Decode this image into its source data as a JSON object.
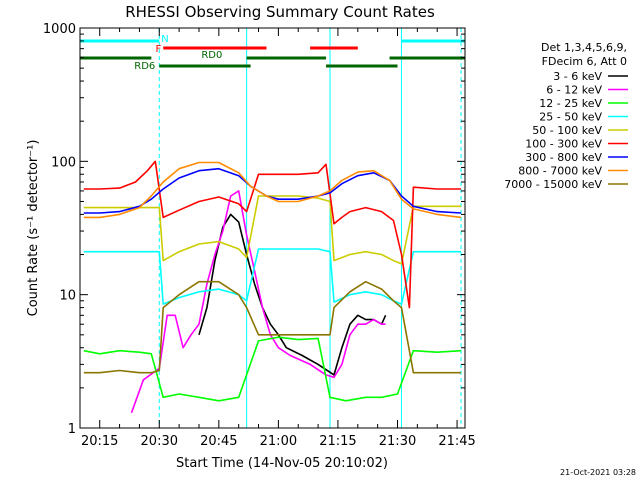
{
  "chart_data": {
    "type": "line",
    "title": "RHESSI Observing Summary Count Rates",
    "xlabel": "Start Time (14-Nov-05 20:10:02)",
    "ylabel": "Count Rate (s⁻¹ detector⁻¹)",
    "y_scale": "log",
    "ylim": [
      1,
      1000
    ],
    "xlim": [
      "20:10:02",
      "21:47"
    ],
    "x_ticks": [
      "20:15",
      "20:30",
      "20:45",
      "21:00",
      "21:15",
      "21:30",
      "21:45"
    ],
    "y_ticks": [
      "1",
      "10",
      "100",
      "1000"
    ],
    "grid": false,
    "legend_placement": "right",
    "info_lines": [
      "Det 1,3,4,5,6,9,",
      "FDecim 6, Att 0"
    ],
    "footer_date": "21-Oct-2021 03:28",
    "series": [
      {
        "name": "3 - 6 keV",
        "color": "#000000",
        "x": [
          "20:10",
          "20:25",
          "20:28",
          "20:30",
          "20:32",
          "20:36",
          "20:38",
          "20:40",
          "20:42",
          "20:44",
          "20:46",
          "20:48",
          "20:50",
          "20:52",
          "20:54",
          "20:56",
          "20:58",
          "21:00",
          "21:02",
          "21:06",
          "21:10",
          "21:14",
          "21:16",
          "21:18",
          "21:20",
          "21:22",
          "21:24",
          "21:26",
          "21:27"
        ],
        "y": [
          null,
          null,
          null,
          null,
          null,
          null,
          null,
          5,
          8,
          18,
          32,
          40,
          35,
          20,
          12,
          8,
          6,
          5,
          4,
          3.5,
          3,
          2.5,
          4,
          6,
          7,
          6.5,
          6.5,
          6,
          7
        ]
      },
      {
        "name": "6 - 12 keV",
        "color": "#ff00ff",
        "x": [
          "20:10",
          "20:23",
          "20:26",
          "20:30",
          "20:32",
          "20:34",
          "20:36",
          "20:38",
          "20:40",
          "20:42",
          "20:44",
          "20:46",
          "20:48",
          "20:50",
          "20:52",
          "20:54",
          "20:56",
          "20:58",
          "21:00",
          "21:03",
          "21:08",
          "21:12",
          "21:14",
          "21:16",
          "21:18",
          "21:20",
          "21:22",
          "21:24",
          "21:26",
          "21:27",
          "21:28"
        ],
        "y": [
          null,
          1.3,
          2.3,
          2.8,
          7,
          7,
          4,
          5,
          6,
          12,
          20,
          30,
          55,
          60,
          28,
          15,
          8,
          5,
          4,
          3.5,
          3,
          2.5,
          2.4,
          3,
          5,
          6,
          6,
          6.5,
          6,
          6,
          null
        ]
      },
      {
        "name": "12 - 25 keV",
        "color": "#00ff00",
        "x": [
          "20:11",
          "20:15",
          "20:20",
          "20:25",
          "20:28",
          "20:31",
          "20:35",
          "20:40",
          "20:45",
          "20:50",
          "20:55",
          "21:00",
          "21:05",
          "21:10",
          "21:13",
          "21:17",
          "21:22",
          "21:26",
          "21:30",
          "21:34",
          "21:40",
          "21:46"
        ],
        "y": [
          3.8,
          3.6,
          3.8,
          3.7,
          3.6,
          1.7,
          1.8,
          1.7,
          1.6,
          1.7,
          4.5,
          4.8,
          4.6,
          4.7,
          1.7,
          1.6,
          1.7,
          1.7,
          1.8,
          3.8,
          3.7,
          3.8
        ]
      },
      {
        "name": "25 - 50 keV",
        "color": "#00ffff",
        "x": [
          "20:11",
          "20:15",
          "20:20",
          "20:25",
          "20:28",
          "20:30",
          "20:31",
          "20:35",
          "20:40",
          "20:45",
          "20:50",
          "20:52",
          "20:55",
          "21:00",
          "21:05",
          "21:10",
          "21:13",
          "21:14",
          "21:18",
          "21:22",
          "21:26",
          "21:29",
          "21:31",
          "21:34",
          "21:40",
          "21:46"
        ],
        "y": [
          21,
          21,
          21,
          21,
          21,
          21,
          8.5,
          9.5,
          10.5,
          11,
          10,
          9,
          22,
          22,
          22,
          22,
          21,
          8.8,
          10,
          10.5,
          10,
          9,
          8.5,
          21,
          21,
          21
        ]
      },
      {
        "name": "50 - 100 keV",
        "color": "#cccc00",
        "x": [
          "20:11",
          "20:15",
          "20:20",
          "20:25",
          "20:28",
          "20:30",
          "20:31",
          "20:35",
          "20:40",
          "20:45",
          "20:50",
          "20:52",
          "20:55",
          "21:00",
          "21:05",
          "21:10",
          "21:13",
          "21:14",
          "21:18",
          "21:22",
          "21:26",
          "21:29",
          "21:31",
          "21:34",
          "21:40",
          "21:46"
        ],
        "y": [
          45,
          45,
          45,
          45,
          45,
          45,
          18,
          21,
          24,
          25,
          22,
          19,
          55,
          55,
          55,
          53,
          50,
          18,
          20,
          21,
          20,
          18,
          17,
          46,
          46,
          46
        ]
      },
      {
        "name": "100 - 300 keV",
        "color": "#ff0000",
        "x": [
          "20:11",
          "20:15",
          "20:20",
          "20:24",
          "20:27",
          "20:29",
          "20:31",
          "20:35",
          "20:40",
          "20:45",
          "20:50",
          "20:52",
          "20:55",
          "21:00",
          "21:05",
          "21:10",
          "21:12",
          "21:14",
          "21:16",
          "21:18",
          "21:22",
          "21:26",
          "21:29",
          "21:31",
          "21:33",
          "21:34",
          "21:40",
          "21:46"
        ],
        "y": [
          62,
          62,
          63,
          70,
          85,
          100,
          38,
          43,
          50,
          54,
          48,
          42,
          80,
          80,
          80,
          82,
          95,
          34,
          38,
          42,
          45,
          42,
          36,
          20,
          8,
          64,
          62,
          62
        ]
      },
      {
        "name": "300 - 800 keV",
        "color": "#0000ff",
        "x": [
          "20:11",
          "20:15",
          "20:20",
          "20:25",
          "20:28",
          "20:31",
          "20:35",
          "20:40",
          "20:45",
          "20:50",
          "20:53",
          "20:57",
          "21:00",
          "21:05",
          "21:10",
          "21:13",
          "21:16",
          "21:20",
          "21:24",
          "21:28",
          "21:31",
          "21:34",
          "21:40",
          "21:46"
        ],
        "y": [
          41,
          41,
          42,
          46,
          52,
          62,
          75,
          85,
          88,
          78,
          65,
          55,
          52,
          52,
          55,
          58,
          68,
          78,
          82,
          72,
          55,
          46,
          42,
          41
        ]
      },
      {
        "name": "800 - 7000 keV",
        "color": "#ff8c00",
        "x": [
          "20:11",
          "20:15",
          "20:20",
          "20:25",
          "20:28",
          "20:31",
          "20:35",
          "20:40",
          "20:45",
          "20:50",
          "20:53",
          "20:57",
          "21:00",
          "21:05",
          "21:10",
          "21:13",
          "21:16",
          "21:20",
          "21:24",
          "21:28",
          "21:31",
          "21:34",
          "21:40",
          "21:46"
        ],
        "y": [
          38,
          38,
          40,
          45,
          55,
          70,
          88,
          98,
          98,
          82,
          65,
          55,
          50,
          50,
          55,
          60,
          72,
          83,
          85,
          72,
          52,
          44,
          40,
          38
        ]
      },
      {
        "name": "7000 - 15000 keV",
        "color": "#8b7500",
        "x": [
          "20:11",
          "20:15",
          "20:20",
          "20:25",
          "20:28",
          "20:30",
          "20:31",
          "20:35",
          "20:40",
          "20:45",
          "20:50",
          "20:52",
          "20:55",
          "21:00",
          "21:05",
          "21:10",
          "21:13",
          "21:14",
          "21:18",
          "21:22",
          "21:26",
          "21:29",
          "21:31",
          "21:34",
          "21:40",
          "21:46"
        ],
        "y": [
          2.6,
          2.6,
          2.7,
          2.6,
          2.6,
          2.7,
          8,
          10,
          12.5,
          12.5,
          10,
          8,
          5,
          5,
          5,
          5,
          5,
          8,
          10.5,
          12.5,
          11,
          9,
          8,
          2.6,
          2.6,
          2.6
        ]
      }
    ],
    "flag_bars": [
      {
        "label": "N",
        "color": "#00ffff",
        "level": "top",
        "segments": [
          [
            "20:10",
            "20:30"
          ],
          [
            "21:31",
            "21:47"
          ]
        ]
      },
      {
        "label": "F",
        "color": "#ff0000",
        "level": "upper",
        "segments": [
          [
            "20:31",
            "20:57"
          ],
          [
            "21:08",
            "21:20"
          ]
        ]
      },
      {
        "label": "RD0",
        "color": "#006400",
        "level": "middle",
        "segments": [
          [
            "20:10",
            "20:28"
          ],
          [
            "20:52",
            "21:12"
          ],
          [
            "21:28",
            "21:47"
          ]
        ]
      },
      {
        "label": "RD6",
        "color": "#006400",
        "level": "bottom",
        "segments": [
          [
            "20:30",
            "20:53"
          ],
          [
            "21:12",
            "21:30"
          ]
        ]
      }
    ],
    "vlines": [
      {
        "time": "20:30",
        "color": "#00ffff",
        "style": "dashed"
      },
      {
        "time": "20:52",
        "color": "#00ffff",
        "style": "solid"
      },
      {
        "time": "21:13",
        "color": "#00ffff",
        "style": "solid"
      },
      {
        "time": "21:31",
        "color": "#00ffff",
        "style": "solid"
      },
      {
        "time": "21:46",
        "color": "#00ffff",
        "style": "dashed"
      }
    ]
  }
}
